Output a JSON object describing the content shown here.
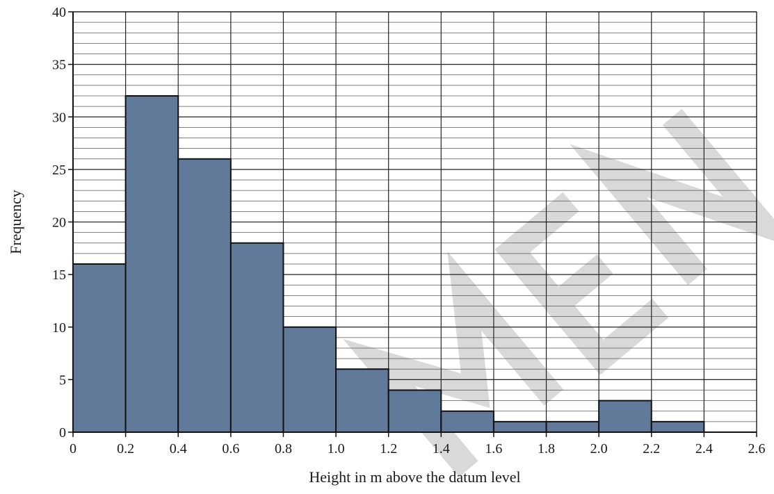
{
  "chart_data": {
    "type": "bar",
    "subtype": "histogram",
    "xlabel": "Height in m above the datum level",
    "ylabel": "Frequency",
    "bin_edges": [
      0,
      0.2,
      0.4,
      0.6,
      0.8,
      1.0,
      1.2,
      1.4,
      1.6,
      1.8,
      2.0,
      2.2,
      2.4,
      2.6
    ],
    "values": [
      16,
      32,
      26,
      18,
      10,
      6,
      4,
      2,
      1,
      1,
      3,
      1,
      0
    ],
    "xlim": [
      0,
      2.6
    ],
    "ylim": [
      0,
      40
    ],
    "x_ticks": [
      "0",
      "0.2",
      "0.4",
      "0.6",
      "0.8",
      "1.0",
      "1.2",
      "1.4",
      "1.6",
      "1.8",
      "2.0",
      "2.2",
      "2.4",
      "2.6"
    ],
    "y_ticks": [
      "0",
      "5",
      "10",
      "15",
      "20",
      "25",
      "30",
      "35",
      "40"
    ],
    "grid": true,
    "watermark": "SPECIMEN",
    "colors": {
      "bar": "#627a9a",
      "bar_edge": "#111111",
      "grid_major": "#222222",
      "grid_minor": "#555555",
      "watermark": "#d9d9d9"
    }
  }
}
